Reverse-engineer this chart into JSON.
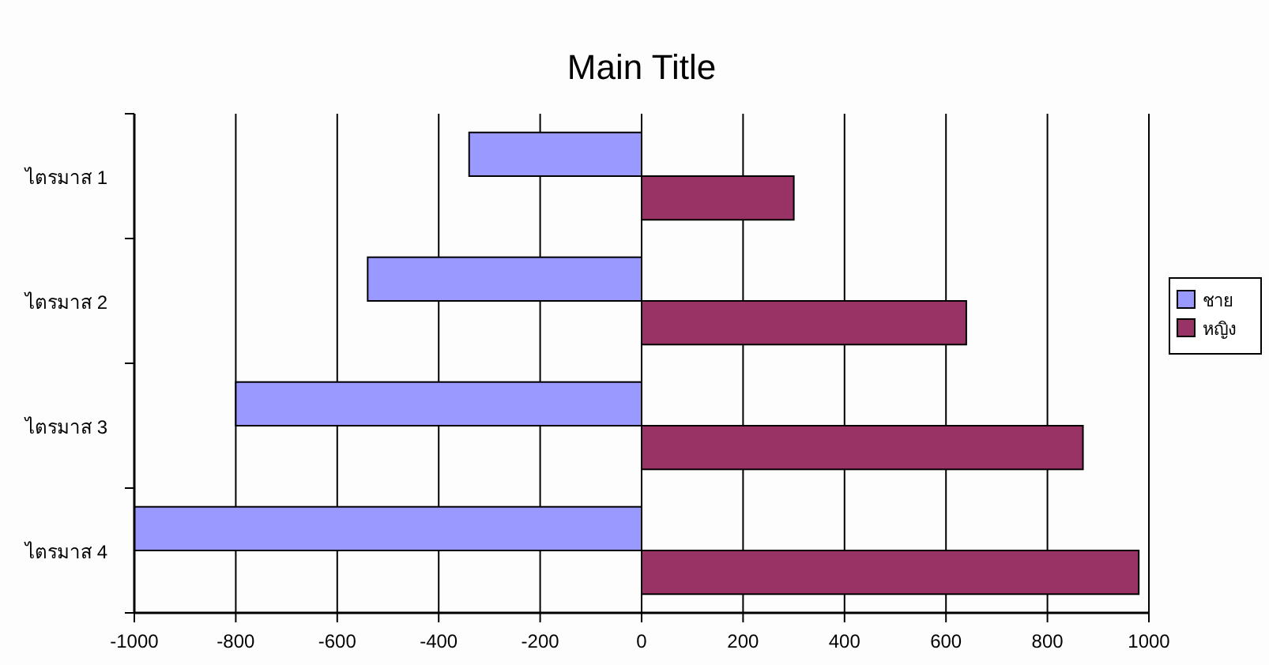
{
  "chart_data": {
    "type": "bar",
    "orientation": "horizontal",
    "title": "Main Title",
    "categories": [
      "ไตรมาส 1",
      "ไตรมาส 2",
      "ไตรมาส 3",
      "ไตรมาส 4"
    ],
    "series": [
      {
        "name": "ชาย",
        "color": "#9999ff",
        "values": [
          -340,
          -540,
          -800,
          -1000
        ]
      },
      {
        "name": "หญิง",
        "color": "#993366",
        "values": [
          300,
          640,
          870,
          980
        ]
      }
    ],
    "xlim": [
      -1000,
      1000
    ],
    "xticks": [
      -1000,
      -800,
      -600,
      -400,
      -200,
      0,
      200,
      400,
      600,
      800,
      1000
    ],
    "grid": "x",
    "legend": "right"
  }
}
